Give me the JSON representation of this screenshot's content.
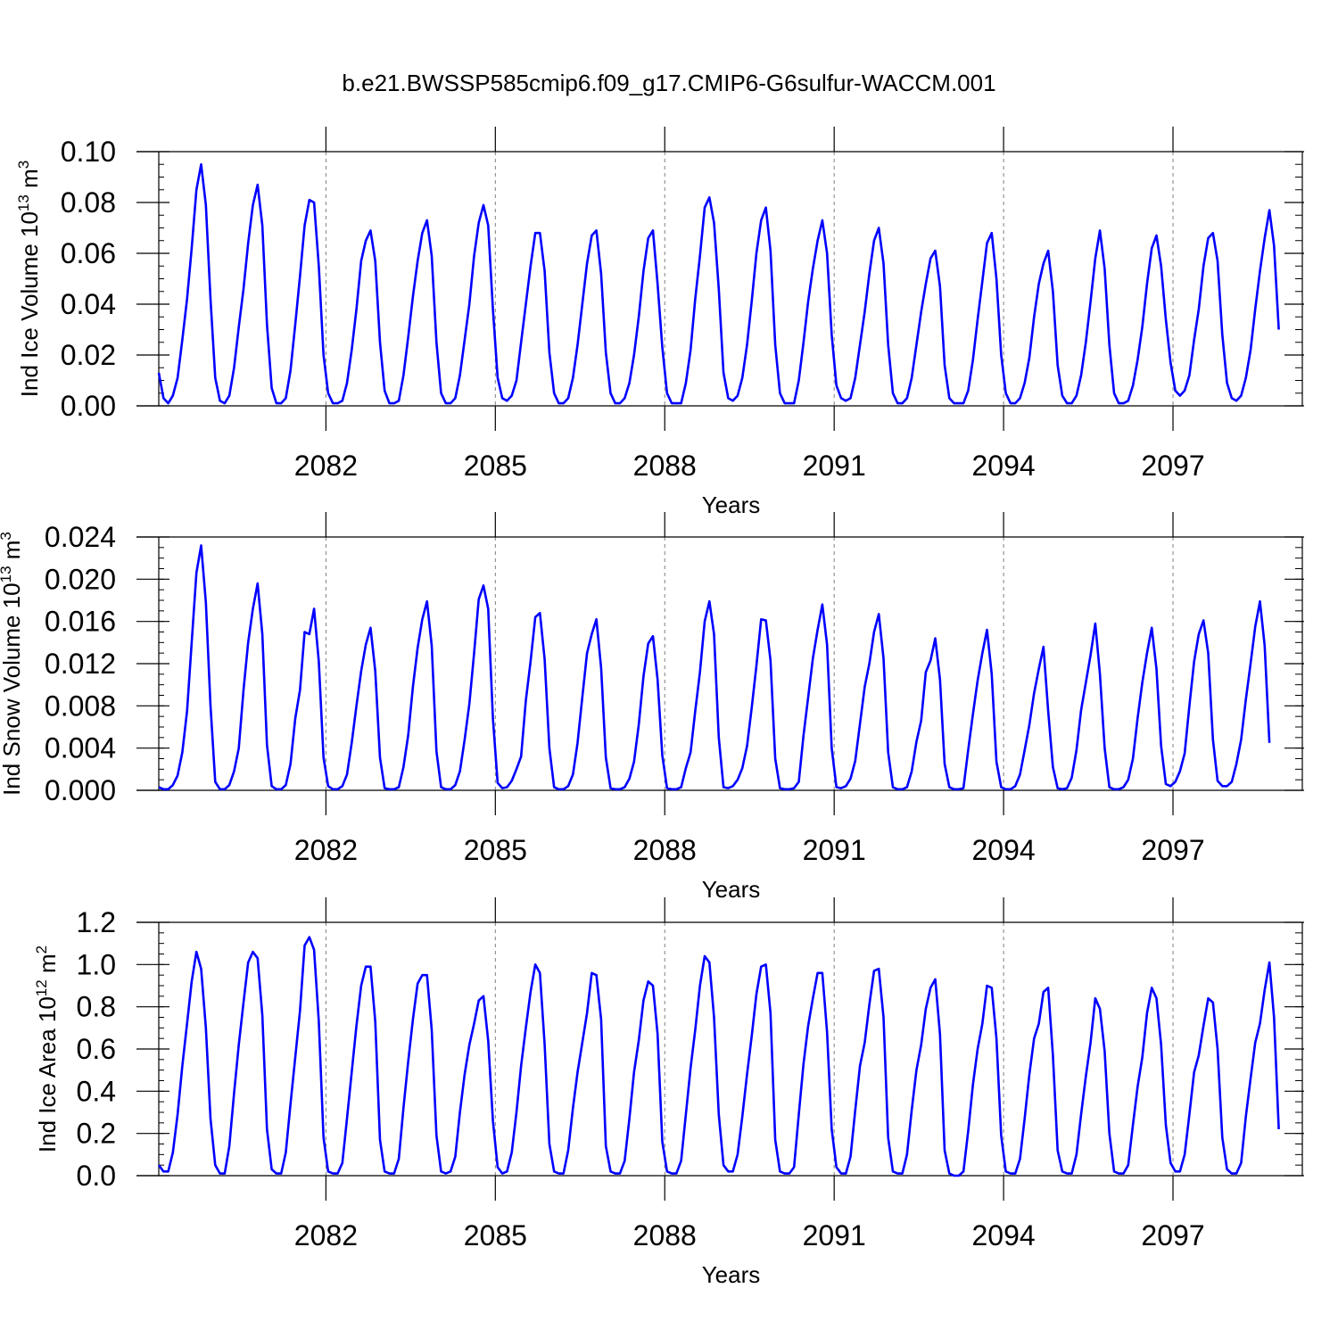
{
  "title": "b.e21.BWSSP585cmip6.f09_g17.CMIP6-G6sulfur-WACCM.001",
  "colors": {
    "line": "#0000ff",
    "frame": "#000000",
    "grid": "#7f7f7f"
  },
  "chart_data": [
    {
      "type": "line",
      "id": "ice-volume",
      "ylabel_main": "Ind Ice Volume 10",
      "ylabel_exp": "13",
      "ylabel_unit": " m",
      "ylabel_unit_exp": "3",
      "xlabel": "Years",
      "xlim": [
        2079.04,
        2099.29
      ],
      "ylim": [
        0.0,
        0.1
      ],
      "yticks": [
        0.0,
        0.02,
        0.04,
        0.06,
        0.08,
        0.1
      ],
      "ytick_labels": [
        "0.00",
        "0.02",
        "0.04",
        "0.06",
        "0.08",
        "0.10"
      ],
      "yminor_step": 0.005,
      "xticks": [
        2082,
        2085,
        2088,
        2091,
        2094,
        2097
      ],
      "xtick_labels": [
        "2082",
        "2085",
        "2088",
        "2091",
        "2094",
        "2097"
      ],
      "x_start": 2079.04,
      "x_step": 0.0833333,
      "series": [
        {
          "name": "Ind Ice Volume",
          "values": [
            0.013,
            0.003,
            0.001,
            0.004,
            0.011,
            0.026,
            0.042,
            0.062,
            0.085,
            0.095,
            0.079,
            0.042,
            0.011,
            0.002,
            0.001,
            0.004,
            0.015,
            0.031,
            0.046,
            0.064,
            0.079,
            0.087,
            0.071,
            0.032,
            0.007,
            0.001,
            0.001,
            0.003,
            0.014,
            0.032,
            0.051,
            0.071,
            0.081,
            0.08,
            0.055,
            0.02,
            0.005,
            0.001,
            0.001,
            0.002,
            0.009,
            0.022,
            0.038,
            0.057,
            0.065,
            0.069,
            0.057,
            0.025,
            0.006,
            0.001,
            0.001,
            0.002,
            0.012,
            0.027,
            0.043,
            0.057,
            0.068,
            0.073,
            0.059,
            0.025,
            0.005,
            0.001,
            0.001,
            0.003,
            0.012,
            0.026,
            0.04,
            0.059,
            0.072,
            0.079,
            0.071,
            0.038,
            0.011,
            0.003,
            0.002,
            0.004,
            0.01,
            0.025,
            0.04,
            0.055,
            0.068,
            0.068,
            0.053,
            0.021,
            0.005,
            0.001,
            0.001,
            0.003,
            0.011,
            0.024,
            0.04,
            0.056,
            0.067,
            0.069,
            0.052,
            0.021,
            0.005,
            0.001,
            0.001,
            0.003,
            0.009,
            0.02,
            0.035,
            0.053,
            0.066,
            0.069,
            0.048,
            0.023,
            0.005,
            0.001,
            0.001,
            0.001,
            0.009,
            0.022,
            0.042,
            0.059,
            0.078,
            0.082,
            0.072,
            0.046,
            0.013,
            0.003,
            0.002,
            0.004,
            0.011,
            0.024,
            0.041,
            0.06,
            0.073,
            0.078,
            0.061,
            0.024,
            0.005,
            0.001,
            0.001,
            0.001,
            0.01,
            0.025,
            0.041,
            0.054,
            0.065,
            0.073,
            0.06,
            0.028,
            0.008,
            0.003,
            0.002,
            0.003,
            0.011,
            0.024,
            0.037,
            0.052,
            0.065,
            0.07,
            0.056,
            0.024,
            0.005,
            0.001,
            0.001,
            0.003,
            0.011,
            0.024,
            0.037,
            0.048,
            0.058,
            0.061,
            0.047,
            0.016,
            0.003,
            0.001,
            0.001,
            0.001,
            0.006,
            0.018,
            0.034,
            0.049,
            0.064,
            0.068,
            0.05,
            0.02,
            0.005,
            0.001,
            0.001,
            0.003,
            0.009,
            0.019,
            0.035,
            0.048,
            0.056,
            0.061,
            0.045,
            0.016,
            0.004,
            0.001,
            0.001,
            0.004,
            0.012,
            0.025,
            0.041,
            0.058,
            0.069,
            0.054,
            0.024,
            0.005,
            0.001,
            0.001,
            0.002,
            0.008,
            0.018,
            0.031,
            0.048,
            0.062,
            0.067,
            0.055,
            0.034,
            0.017,
            0.006,
            0.004,
            0.006,
            0.012,
            0.026,
            0.038,
            0.055,
            0.066,
            0.068,
            0.057,
            0.028,
            0.009,
            0.003,
            0.002,
            0.004,
            0.011,
            0.022,
            0.038,
            0.053,
            0.066,
            0.077,
            0.063,
            0.03
          ]
        }
      ]
    },
    {
      "type": "line",
      "id": "snow-volume",
      "ylabel_main": "Ind Snow Volume 10",
      "ylabel_exp": "13",
      "ylabel_unit": " m",
      "ylabel_unit_exp": "3",
      "xlabel": "Years",
      "xlim": [
        2079.04,
        2099.29
      ],
      "ylim": [
        0.0,
        0.024
      ],
      "yticks": [
        0.0,
        0.004,
        0.008,
        0.012,
        0.016,
        0.02,
        0.024
      ],
      "ytick_labels": [
        "0.000",
        "0.004",
        "0.008",
        "0.012",
        "0.016",
        "0.020",
        "0.024"
      ],
      "yminor_step": 0.001,
      "xticks": [
        2082,
        2085,
        2088,
        2091,
        2094,
        2097
      ],
      "xtick_labels": [
        "2082",
        "2085",
        "2088",
        "2091",
        "2094",
        "2097"
      ],
      "x_start": 2079.04,
      "x_step": 0.0833333,
      "series": [
        {
          "name": "Ind Snow Volume",
          "values": [
            0.0003,
            0.0001,
            0.0001,
            0.0005,
            0.0014,
            0.0036,
            0.0075,
            0.014,
            0.0206,
            0.0232,
            0.0178,
            0.008,
            0.0008,
            0.0001,
            0.0001,
            0.0005,
            0.0018,
            0.004,
            0.0095,
            0.014,
            0.0172,
            0.0196,
            0.0148,
            0.0043,
            0.0004,
            0.0001,
            0.0001,
            0.0005,
            0.0025,
            0.0068,
            0.0095,
            0.015,
            0.0148,
            0.0172,
            0.0122,
            0.0031,
            0.0004,
            0.0001,
            0.0001,
            0.0004,
            0.0015,
            0.0045,
            0.008,
            0.0113,
            0.0138,
            0.0154,
            0.0113,
            0.0031,
            0.0002,
            0.0001,
            0.0001,
            0.0003,
            0.0022,
            0.0052,
            0.0098,
            0.0135,
            0.0162,
            0.0179,
            0.0137,
            0.0037,
            0.0003,
            0.0001,
            0.0001,
            0.0005,
            0.0018,
            0.0048,
            0.0082,
            0.013,
            0.0181,
            0.0194,
            0.0172,
            0.0068,
            0.0007,
            0.0002,
            0.0003,
            0.0009,
            0.002,
            0.0032,
            0.0085,
            0.0122,
            0.0164,
            0.0168,
            0.0124,
            0.004,
            0.0003,
            0.0001,
            0.0001,
            0.0004,
            0.0015,
            0.0045,
            0.0088,
            0.013,
            0.0148,
            0.0162,
            0.0116,
            0.0031,
            0.0002,
            0.0001,
            0.0001,
            0.0003,
            0.0011,
            0.0027,
            0.0062,
            0.0108,
            0.0139,
            0.0146,
            0.0105,
            0.0033,
            0.0002,
            0.0001,
            0.0001,
            0.0003,
            0.0021,
            0.0036,
            0.0075,
            0.0112,
            0.016,
            0.0179,
            0.0148,
            0.005,
            0.0003,
            0.0002,
            0.0004,
            0.001,
            0.0021,
            0.0042,
            0.0078,
            0.0118,
            0.0162,
            0.0161,
            0.0123,
            0.003,
            0.0002,
            0.0001,
            0.0001,
            0.0002,
            0.0008,
            0.0052,
            0.0088,
            0.0125,
            0.0152,
            0.0176,
            0.0138,
            0.004,
            0.0003,
            0.0002,
            0.0004,
            0.0011,
            0.0028,
            0.0063,
            0.0098,
            0.012,
            0.015,
            0.0167,
            0.0125,
            0.0036,
            0.0003,
            0.0001,
            0.0001,
            0.0003,
            0.0018,
            0.0046,
            0.0066,
            0.0112,
            0.0123,
            0.0144,
            0.0105,
            0.0025,
            0.0003,
            0.0001,
            0.0001,
            0.0002,
            0.0038,
            0.0072,
            0.0104,
            0.013,
            0.0152,
            0.011,
            0.0027,
            0.0003,
            0.0001,
            0.0001,
            0.0004,
            0.0015,
            0.0038,
            0.0062,
            0.0092,
            0.0115,
            0.0136,
            0.0075,
            0.0022,
            0.0002,
            0.0001,
            0.0002,
            0.0012,
            0.0038,
            0.0076,
            0.0102,
            0.0128,
            0.0158,
            0.011,
            0.004,
            0.0003,
            0.0001,
            0.0001,
            0.0003,
            0.001,
            0.003,
            0.0068,
            0.0102,
            0.013,
            0.0154,
            0.0115,
            0.0042,
            0.0006,
            0.0004,
            0.0008,
            0.0018,
            0.0035,
            0.008,
            0.0122,
            0.0148,
            0.0161,
            0.013,
            0.0048,
            0.0009,
            0.0004,
            0.0004,
            0.0008,
            0.0025,
            0.0048,
            0.0086,
            0.012,
            0.0155,
            0.0179,
            0.0137,
            0.0045
          ]
        }
      ]
    },
    {
      "type": "line",
      "id": "ice-area",
      "ylabel_main": "Ind Ice Area 10",
      "ylabel_exp": "12",
      "ylabel_unit": " m",
      "ylabel_unit_exp": "2",
      "xlabel": "Years",
      "xlim": [
        2079.04,
        2099.29
      ],
      "ylim": [
        0.0,
        1.2
      ],
      "yticks": [
        0.0,
        0.2,
        0.4,
        0.6,
        0.8,
        1.0,
        1.2
      ],
      "ytick_labels": [
        "0.0",
        "0.2",
        "0.4",
        "0.6",
        "0.8",
        "1.0",
        "1.2"
      ],
      "yminor_step": 0.05,
      "xticks": [
        2082,
        2085,
        2088,
        2091,
        2094,
        2097
      ],
      "xtick_labels": [
        "2082",
        "2085",
        "2088",
        "2091",
        "2094",
        "2097"
      ],
      "x_start": 2079.04,
      "x_step": 0.0833333,
      "series": [
        {
          "name": "Ind Ice Area",
          "values": [
            0.05,
            0.02,
            0.02,
            0.11,
            0.29,
            0.52,
            0.72,
            0.92,
            1.06,
            0.98,
            0.7,
            0.27,
            0.05,
            0.01,
            0.01,
            0.14,
            0.39,
            0.62,
            0.82,
            1.01,
            1.06,
            1.03,
            0.76,
            0.22,
            0.03,
            0.01,
            0.01,
            0.11,
            0.34,
            0.56,
            0.78,
            1.09,
            1.13,
            1.07,
            0.73,
            0.18,
            0.02,
            0.01,
            0.01,
            0.06,
            0.27,
            0.49,
            0.71,
            0.9,
            0.99,
            0.99,
            0.73,
            0.17,
            0.02,
            0.01,
            0.01,
            0.08,
            0.32,
            0.54,
            0.74,
            0.91,
            0.95,
            0.95,
            0.69,
            0.19,
            0.02,
            0.01,
            0.02,
            0.09,
            0.3,
            0.48,
            0.62,
            0.72,
            0.83,
            0.85,
            0.64,
            0.26,
            0.04,
            0.01,
            0.02,
            0.11,
            0.3,
            0.52,
            0.7,
            0.87,
            1.0,
            0.96,
            0.62,
            0.15,
            0.02,
            0.01,
            0.01,
            0.12,
            0.32,
            0.49,
            0.63,
            0.77,
            0.96,
            0.95,
            0.74,
            0.14,
            0.02,
            0.01,
            0.01,
            0.07,
            0.27,
            0.49,
            0.64,
            0.83,
            0.92,
            0.9,
            0.67,
            0.16,
            0.02,
            0.01,
            0.01,
            0.07,
            0.29,
            0.51,
            0.69,
            0.9,
            1.04,
            1.01,
            0.75,
            0.29,
            0.05,
            0.02,
            0.02,
            0.1,
            0.28,
            0.48,
            0.66,
            0.86,
            0.99,
            1.0,
            0.77,
            0.17,
            0.02,
            0.01,
            0.01,
            0.04,
            0.29,
            0.53,
            0.71,
            0.84,
            0.96,
            0.96,
            0.68,
            0.22,
            0.04,
            0.01,
            0.01,
            0.09,
            0.31,
            0.52,
            0.63,
            0.81,
            0.97,
            0.98,
            0.75,
            0.18,
            0.02,
            0.01,
            0.01,
            0.1,
            0.31,
            0.5,
            0.62,
            0.79,
            0.89,
            0.93,
            0.67,
            0.12,
            0.01,
            0.0,
            0.0,
            0.02,
            0.21,
            0.43,
            0.6,
            0.72,
            0.9,
            0.89,
            0.65,
            0.19,
            0.02,
            0.01,
            0.01,
            0.08,
            0.27,
            0.48,
            0.65,
            0.72,
            0.87,
            0.89,
            0.57,
            0.12,
            0.02,
            0.01,
            0.01,
            0.1,
            0.29,
            0.47,
            0.63,
            0.84,
            0.79,
            0.59,
            0.2,
            0.02,
            0.01,
            0.01,
            0.05,
            0.24,
            0.42,
            0.56,
            0.77,
            0.89,
            0.84,
            0.62,
            0.24,
            0.06,
            0.02,
            0.02,
            0.1,
            0.29,
            0.49,
            0.57,
            0.71,
            0.84,
            0.82,
            0.6,
            0.18,
            0.03,
            0.01,
            0.01,
            0.06,
            0.28,
            0.46,
            0.63,
            0.72,
            0.88,
            1.01,
            0.75,
            0.22
          ]
        }
      ]
    }
  ]
}
